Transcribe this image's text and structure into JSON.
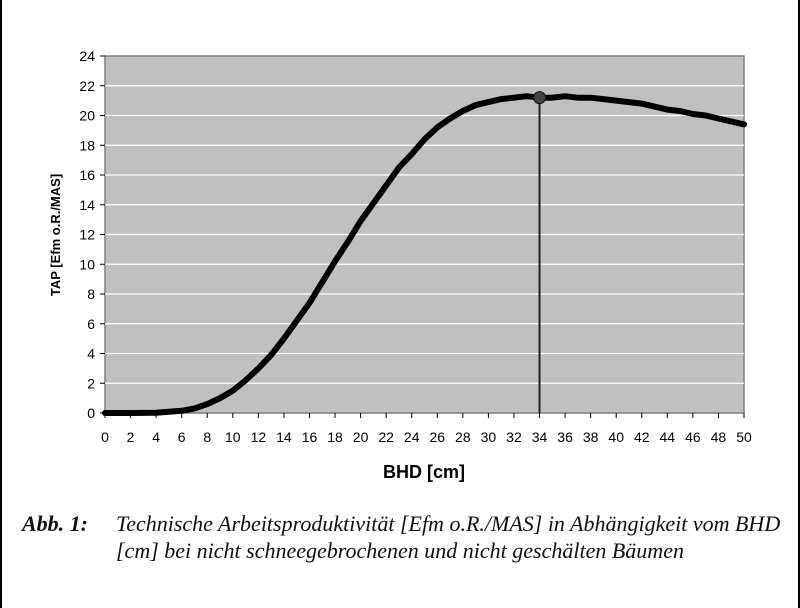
{
  "chart_data": {
    "type": "line",
    "title": "",
    "xlabel": "BHD [cm]",
    "ylabel": "TAP [Efm o.R./MAS]",
    "xlim": [
      0,
      50
    ],
    "ylim": [
      0,
      24
    ],
    "x_ticks": [
      0,
      2,
      4,
      6,
      8,
      10,
      12,
      14,
      16,
      18,
      20,
      22,
      24,
      26,
      28,
      30,
      32,
      34,
      36,
      38,
      40,
      42,
      44,
      46,
      48,
      50
    ],
    "y_ticks": [
      0,
      2,
      4,
      6,
      8,
      10,
      12,
      14,
      16,
      18,
      20,
      22,
      24
    ],
    "grid": "horizontal",
    "series": [
      {
        "x": [
          0,
          2,
          4,
          6,
          7,
          8,
          9,
          10,
          11,
          12,
          13,
          14,
          15,
          16,
          17,
          18,
          19,
          20,
          21,
          22,
          23,
          24,
          25,
          26,
          27,
          28,
          29,
          30,
          31,
          32,
          33,
          34,
          35,
          36,
          37,
          38,
          39,
          40,
          41,
          42,
          43,
          44,
          45,
          46,
          47,
          48,
          49,
          50
        ],
        "y": [
          0,
          0,
          0.02,
          0.15,
          0.3,
          0.6,
          1.0,
          1.5,
          2.2,
          3.0,
          3.9,
          5.0,
          6.2,
          7.4,
          8.8,
          10.2,
          11.5,
          12.9,
          14.1,
          15.3,
          16.5,
          17.4,
          18.4,
          19.2,
          19.8,
          20.3,
          20.7,
          20.9,
          21.1,
          21.2,
          21.3,
          21.2,
          21.2,
          21.3,
          21.2,
          21.2,
          21.1,
          21.0,
          20.9,
          20.8,
          20.6,
          20.4,
          20.3,
          20.1,
          20.0,
          19.8,
          19.6,
          19.4
        ],
        "color": "#000000"
      }
    ],
    "annotations": [
      {
        "type": "marker-dropline",
        "x": 34,
        "y": 21.2
      }
    ],
    "colors": {
      "plot_background": "#c0c0c0",
      "grid": "#ffffff",
      "line": "#000000"
    }
  },
  "caption": {
    "label": "Abb. 1:",
    "text": "Technische Arbeitsproduktivität [Efm o.R./MAS] in Abhängigkeit vom BHD [cm] bei nicht schneegebrochenen und nicht geschälten Bäumen"
  }
}
